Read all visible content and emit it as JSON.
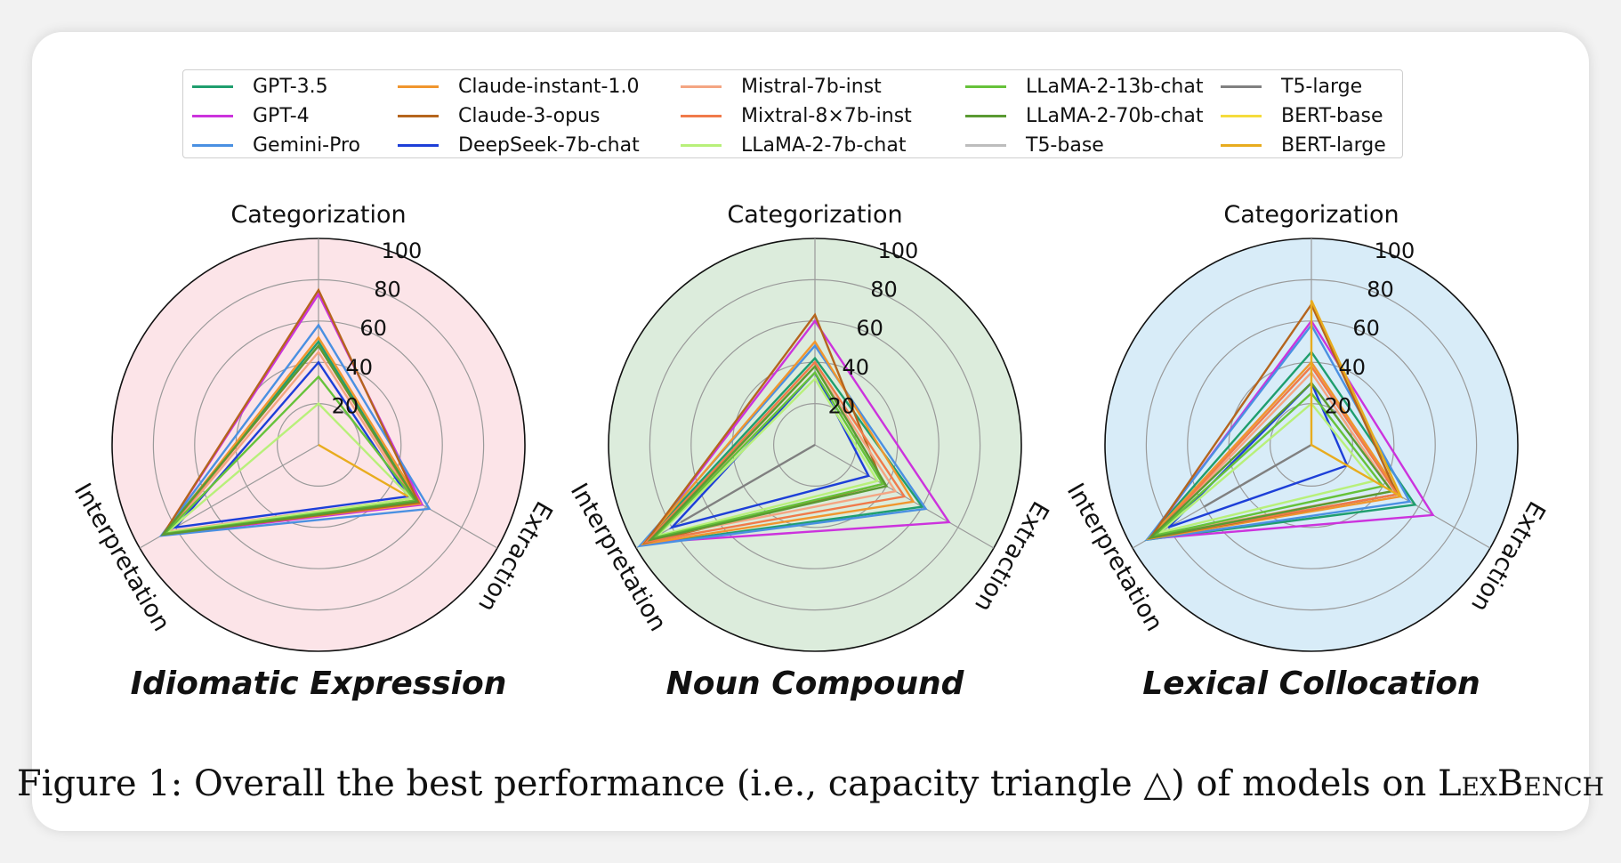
{
  "figure": {
    "caption_prefix": "Figure 1: Overall the best performance (i.e., capacity triangle △) of models on ",
    "caption_name": "LexBench"
  },
  "legend": {
    "items": [
      {
        "label": "GPT-3.5",
        "color": "#1f9e6e"
      },
      {
        "label": "GPT-4",
        "color": "#cc33dd"
      },
      {
        "label": "Gemini-Pro",
        "color": "#4a90e2"
      },
      {
        "label": "Claude-instant-1.0",
        "color": "#f0962e"
      },
      {
        "label": "Claude-3-opus",
        "color": "#b5651d"
      },
      {
        "label": "DeepSeek-7b-chat",
        "color": "#1d3fd8"
      },
      {
        "label": "Mistral-7b-inst",
        "color": "#f4a582"
      },
      {
        "label": "Mixtral-8×7b-inst",
        "color": "#f07a4a"
      },
      {
        "label": "LLaMA-2-7b-chat",
        "color": "#b8f07a"
      },
      {
        "label": "LLaMA-2-13b-chat",
        "color": "#66c23a"
      },
      {
        "label": "LLaMA-2-70b-chat",
        "color": "#5a9a32"
      },
      {
        "label": "T5-base",
        "color": "#bdbdbd"
      },
      {
        "label": "T5-large",
        "color": "#808080"
      },
      {
        "label": "BERT-base",
        "color": "#f5dc3c"
      },
      {
        "label": "BERT-large",
        "color": "#e8ac1e"
      }
    ]
  },
  "chart_data": [
    {
      "type": "radar",
      "title": "Idiomatic Expression",
      "background": "#fce4e8",
      "axes": [
        "Categorization",
        "Extraction",
        "Interpretation"
      ],
      "rticks": [
        20,
        40,
        60,
        80,
        100
      ],
      "rlim": [
        0,
        100
      ],
      "series": [
        {
          "name": "GPT-3.5",
          "values": [
            50,
            55,
            87
          ]
        },
        {
          "name": "GPT-4",
          "values": [
            73,
            58,
            87
          ]
        },
        {
          "name": "Gemini-Pro",
          "values": [
            58,
            62,
            88
          ]
        },
        {
          "name": "Claude-instant-1.0",
          "values": [
            52,
            57,
            86
          ]
        },
        {
          "name": "Claude-3-opus",
          "values": [
            75,
            56,
            87
          ]
        },
        {
          "name": "DeepSeek-7b-chat",
          "values": [
            40,
            50,
            80
          ]
        },
        {
          "name": "Mistral-7b-inst",
          "values": [
            45,
            52,
            84
          ]
        },
        {
          "name": "Mixtral-8×7b-inst",
          "values": [
            48,
            54,
            86
          ]
        },
        {
          "name": "LLaMA-2-7b-chat",
          "values": [
            20,
            52,
            85
          ]
        },
        {
          "name": "LLaMA-2-13b-chat",
          "values": [
            33,
            54,
            86
          ]
        },
        {
          "name": "LLaMA-2-70b-chat",
          "values": [
            48,
            55,
            87
          ]
        },
        {
          "name": "T5-base",
          "values": [
            0,
            0,
            0
          ]
        },
        {
          "name": "T5-large",
          "values": [
            0,
            0,
            0
          ]
        },
        {
          "name": "BERT-base",
          "values": [
            0,
            0,
            0
          ]
        },
        {
          "name": "BERT-large",
          "values": [
            0,
            50,
            0
          ]
        }
      ]
    },
    {
      "type": "radar",
      "title": "Noun Compound",
      "background": "#dcecdc",
      "axes": [
        "Categorization",
        "Extraction",
        "Interpretation"
      ],
      "rticks": [
        20,
        40,
        60,
        80,
        100
      ],
      "rlim": [
        0,
        100
      ],
      "series": [
        {
          "name": "GPT-3.5",
          "values": [
            42,
            60,
            97
          ]
        },
        {
          "name": "GPT-4",
          "values": [
            60,
            75,
            95
          ]
        },
        {
          "name": "Gemini-Pro",
          "values": [
            48,
            62,
            98
          ]
        },
        {
          "name": "Claude-instant-1.0",
          "values": [
            50,
            55,
            96
          ]
        },
        {
          "name": "Claude-3-opus",
          "values": [
            63,
            38,
            95
          ]
        },
        {
          "name": "DeepSeek-7b-chat",
          "values": [
            35,
            30,
            80
          ]
        },
        {
          "name": "Mistral-7b-inst",
          "values": [
            38,
            45,
            90
          ]
        },
        {
          "name": "Mixtral-8×7b-inst",
          "values": [
            40,
            50,
            94
          ]
        },
        {
          "name": "LLaMA-2-7b-chat",
          "values": [
            32,
            35,
            88
          ]
        },
        {
          "name": "LLaMA-2-13b-chat",
          "values": [
            35,
            38,
            90
          ]
        },
        {
          "name": "LLaMA-2-70b-chat",
          "values": [
            38,
            40,
            92
          ]
        },
        {
          "name": "T5-base",
          "values": [
            0,
            0,
            0
          ]
        },
        {
          "name": "T5-large",
          "values": [
            0,
            0,
            75
          ]
        },
        {
          "name": "BERT-base",
          "values": [
            0,
            0,
            0
          ]
        },
        {
          "name": "BERT-large",
          "values": [
            0,
            0,
            0
          ]
        }
      ]
    },
    {
      "type": "radar",
      "title": "Lexical Collocation",
      "background": "#d8ecf8",
      "axes": [
        "Categorization",
        "Extraction",
        "Interpretation"
      ],
      "rticks": [
        20,
        40,
        60,
        80,
        100
      ],
      "rlim": [
        0,
        100
      ],
      "series": [
        {
          "name": "GPT-3.5",
          "values": [
            45,
            58,
            92
          ]
        },
        {
          "name": "GPT-4",
          "values": [
            60,
            68,
            91
          ]
        },
        {
          "name": "Gemini-Pro",
          "values": [
            58,
            55,
            92
          ]
        },
        {
          "name": "Claude-instant-1.0",
          "values": [
            40,
            50,
            91
          ]
        },
        {
          "name": "Claude-3-opus",
          "values": [
            68,
            48,
            90
          ]
        },
        {
          "name": "DeepSeek-7b-chat",
          "values": [
            30,
            20,
            80
          ]
        },
        {
          "name": "Mistral-7b-inst",
          "values": [
            35,
            45,
            88
          ]
        },
        {
          "name": "Mixtral-8×7b-inst",
          "values": [
            38,
            48,
            89
          ]
        },
        {
          "name": "LLaMA-2-7b-chat",
          "values": [
            20,
            35,
            85
          ]
        },
        {
          "name": "LLaMA-2-13b-chat",
          "values": [
            25,
            40,
            88
          ]
        },
        {
          "name": "LLaMA-2-70b-chat",
          "values": [
            30,
            45,
            90
          ]
        },
        {
          "name": "T5-base",
          "values": [
            0,
            0,
            0
          ]
        },
        {
          "name": "T5-large",
          "values": [
            0,
            0,
            60
          ]
        },
        {
          "name": "BERT-base",
          "values": [
            0,
            0,
            0
          ]
        },
        {
          "name": "BERT-large",
          "values": [
            70,
            50,
            0
          ]
        }
      ]
    }
  ]
}
